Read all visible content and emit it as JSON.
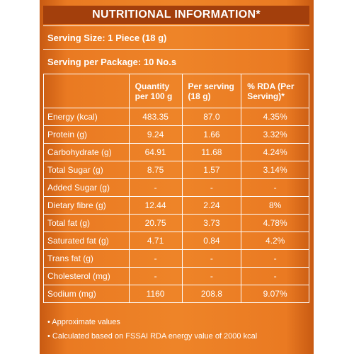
{
  "title": "NUTRITIONAL INFORMATION*",
  "serving_size": "Serving Size: 1 Piece (18 g)",
  "serving_per_package": "Serving per Package: 10 No.s",
  "table": {
    "headers": [
      "Quantity per 100 g",
      "Per serving (18 g)",
      "% RDA (Per Serving)*"
    ],
    "rows": [
      {
        "name": "Energy (kcal)",
        "qty": "483.35",
        "serving": "87.0",
        "rda": "4.35%"
      },
      {
        "name": "Protein (g)",
        "qty": "9.24",
        "serving": "1.66",
        "rda": "3.32%"
      },
      {
        "name": "Carbohydrate (g)",
        "qty": "64.91",
        "serving": "11.68",
        "rda": "4.24%"
      },
      {
        "name": "Total Sugar (g)",
        "qty": "8.75",
        "serving": "1.57",
        "rda": "3.14%"
      },
      {
        "name": "Added Sugar (g)",
        "qty": "-",
        "serving": "-",
        "rda": "-"
      },
      {
        "name": "Dietary fibre (g)",
        "qty": "12.44",
        "serving": "2.24",
        "rda": "8%"
      },
      {
        "name": "Total fat (g)",
        "qty": "20.75",
        "serving": "3.73",
        "rda": "4.78%"
      },
      {
        "name": "Saturated fat (g)",
        "qty": "4.71",
        "serving": "0.84",
        "rda": "4.2%"
      },
      {
        "name": "Trans fat (g)",
        "qty": "-",
        "serving": "-",
        "rda": "-"
      },
      {
        "name": "Cholesterol (mg)",
        "qty": "-",
        "serving": "-",
        "rda": "-"
      },
      {
        "name": "Sodium (mg)",
        "qty": "1160",
        "serving": "208.8",
        "rda": "9.07%"
      }
    ]
  },
  "notes": [
    "• Approximate values",
    "• Calculated based on FSSAI RDA energy value of 2000 kcal"
  ]
}
